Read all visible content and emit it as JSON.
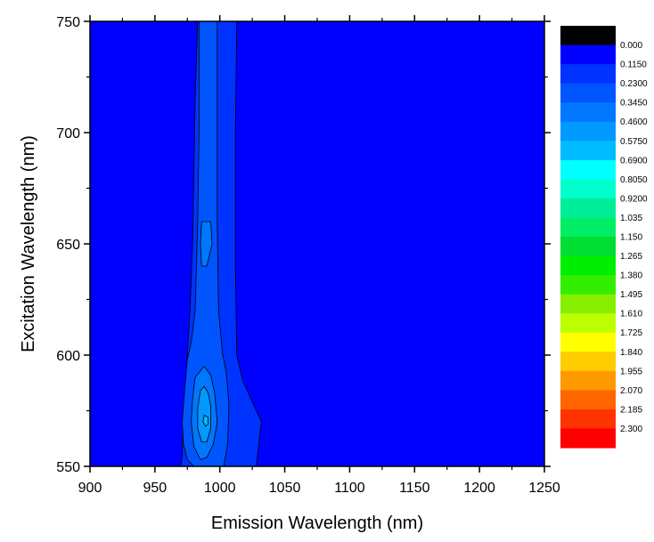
{
  "chart_data": {
    "type": "heatmap",
    "subtype": "filled-contour",
    "title": "",
    "xlabel": "Emission Wavelength (nm)",
    "ylabel": "Excitation Wavelength (nm)",
    "xlim": [
      900,
      1250
    ],
    "ylim": [
      550,
      750
    ],
    "x_ticks": [
      900,
      950,
      1000,
      1050,
      1100,
      1150,
      1200,
      1250
    ],
    "y_ticks": [
      550,
      600,
      650,
      700,
      750
    ],
    "grid": false,
    "colorbar": {
      "position": "right",
      "levels": [
        "0.000",
        "0.1150",
        "0.2300",
        "0.3450",
        "0.4600",
        "0.5750",
        "0.6900",
        "0.8050",
        "0.9200",
        "1.035",
        "1.150",
        "1.265",
        "1.380",
        "1.495",
        "1.610",
        "1.725",
        "1.840",
        "1.955",
        "2.070",
        "2.185",
        "2.300"
      ],
      "colors": [
        "#000000",
        "#0000ff",
        "#0033ff",
        "#0055ff",
        "#0077ff",
        "#0099ff",
        "#00bbff",
        "#00ffff",
        "#00ffcc",
        "#00ee99",
        "#00ee66",
        "#00dd33",
        "#00ee00",
        "#33ee00",
        "#88ee00",
        "#bbff00",
        "#ffff00",
        "#ffcc00",
        "#ff9900",
        "#ff6600",
        "#ff3300",
        "#ff0000"
      ]
    },
    "background_level": "0.0000-0.1150",
    "contours": [
      {
        "level": 0.115,
        "points": [
          [
            983,
            750
          ],
          [
            981,
            715
          ],
          [
            980,
            680
          ],
          [
            979,
            650
          ],
          [
            977,
            620
          ],
          [
            975,
            600
          ],
          [
            974,
            585
          ],
          [
            972,
            570
          ],
          [
            971,
            555
          ],
          [
            970,
            550
          ],
          [
            1028,
            550
          ],
          [
            1032,
            570
          ],
          [
            1018,
            588
          ],
          [
            1013,
            600
          ],
          [
            1012,
            640
          ],
          [
            1012,
            700
          ],
          [
            1013,
            750
          ]
        ]
      },
      {
        "level": 0.23,
        "points": [
          [
            984,
            750
          ],
          [
            984,
            700
          ],
          [
            983,
            660
          ],
          [
            982,
            640
          ],
          [
            981,
            620
          ],
          [
            978,
            606
          ],
          [
            975,
            598
          ],
          [
            973,
            585
          ],
          [
            971,
            570
          ],
          [
            972,
            560
          ],
          [
            975,
            553
          ],
          [
            980,
            550
          ],
          [
            1003,
            550
          ],
          [
            1006,
            560
          ],
          [
            1007,
            578
          ],
          [
            1005,
            592
          ],
          [
            1002,
            601
          ],
          [
            999,
            620
          ],
          [
            998,
            660
          ],
          [
            998,
            700
          ],
          [
            998,
            750
          ]
        ]
      },
      {
        "level": 0.345,
        "points": [
          [
            986,
            660
          ],
          [
            985,
            650
          ],
          [
            986,
            640
          ],
          [
            990,
            640
          ],
          [
            994,
            650
          ],
          [
            993,
            660
          ]
        ]
      },
      {
        "level": 0.345,
        "points": [
          [
            981,
            590
          ],
          [
            979,
            580
          ],
          [
            978,
            570
          ],
          [
            980,
            559
          ],
          [
            985,
            553
          ],
          [
            990,
            554
          ],
          [
            995,
            560
          ],
          [
            998,
            570
          ],
          [
            996,
            583
          ],
          [
            993,
            591
          ],
          [
            988,
            595
          ]
        ]
      },
      {
        "level": 0.46,
        "points": [
          [
            985,
            584
          ],
          [
            983,
            576
          ],
          [
            983,
            567
          ],
          [
            986,
            561
          ],
          [
            990,
            561
          ],
          [
            993,
            567
          ],
          [
            993,
            577
          ],
          [
            991,
            583
          ],
          [
            988,
            586
          ]
        ]
      },
      {
        "level": 0.575,
        "points": [
          [
            988,
            573
          ],
          [
            987,
            570
          ],
          [
            989,
            568
          ],
          [
            991,
            569
          ],
          [
            991,
            572
          ]
        ]
      }
    ]
  }
}
